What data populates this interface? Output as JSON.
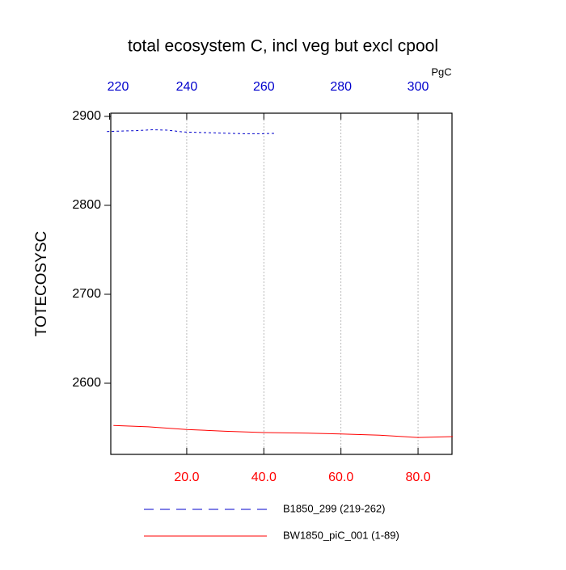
{
  "chart_data": {
    "type": "line",
    "title": "total ecosystem C, incl veg but excl cpool",
    "units_label": "PgC",
    "ylabel": "TOTECOSYSC",
    "xlim": [
      0.3,
      88.8
    ],
    "xticks": [
      {
        "value": 20,
        "label": "20.0"
      },
      {
        "value": 40,
        "label": "40.0"
      },
      {
        "value": 60,
        "label": "60.0"
      },
      {
        "value": 80,
        "label": "80.0"
      }
    ],
    "x2lim": [
      220.3,
      308.8
    ],
    "x2ticks": [
      220,
      240,
      260,
      280,
      300
    ],
    "ylim": [
      2520,
      2903.6
    ],
    "yticks": [
      2600,
      2700,
      2800,
      2900
    ],
    "grid": true,
    "series": [
      {
        "name": "B1850_299 (219-262)",
        "color": "#0000cc",
        "axis": "x2",
        "dash": true,
        "x": [
          219.3,
          223,
          227,
          231,
          235,
          239,
          243,
          247,
          251,
          255,
          259,
          263
        ],
        "values": [
          2883,
          2883.5,
          2884,
          2885,
          2884.5,
          2882.5,
          2882,
          2881.5,
          2881,
          2880.5,
          2880.5,
          2881
        ]
      },
      {
        "name": "BW1850_piC_001 (1-89)",
        "color": "#ff0000",
        "axis": "x",
        "x": [
          1,
          10,
          20,
          30,
          40,
          50,
          60,
          70,
          80,
          89
        ],
        "values": [
          2552.5,
          2551,
          2548,
          2546,
          2544.5,
          2544,
          2543,
          2541.5,
          2539,
          2540
        ]
      }
    ]
  }
}
